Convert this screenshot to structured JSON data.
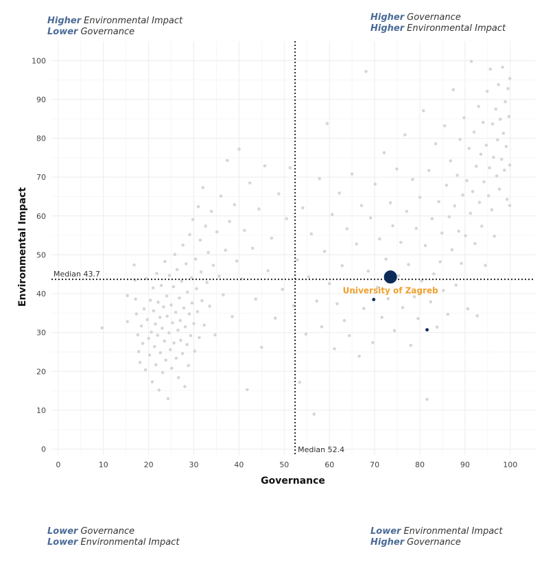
{
  "quadrants": {
    "top_left": [
      {
        "strong": "Higher",
        "text": "Environmental Impact"
      },
      {
        "strong": "Lower",
        "text": "Governance"
      }
    ],
    "top_right": [
      {
        "strong": "Higher",
        "text": "Governance"
      },
      {
        "strong": "Higher",
        "text": "Environmental Impact"
      }
    ],
    "bottom_left": [
      {
        "strong": "Lower",
        "text": "Governance"
      },
      {
        "strong": "Lower",
        "text": "Environmental Impact"
      }
    ],
    "bottom_right": [
      {
        "strong": "Lower",
        "text": "Environmental Impact"
      },
      {
        "strong": "Higher",
        "text": "Governance"
      }
    ]
  },
  "chart_data": {
    "type": "scatter",
    "xlabel": "Governance",
    "ylabel": "Environmental Impact",
    "xlim": [
      -1.5,
      105.5
    ],
    "ylim": [
      -1.5,
      105
    ],
    "xticks": [
      0,
      10,
      20,
      30,
      40,
      50,
      60,
      70,
      80,
      90,
      100
    ],
    "yticks": [
      0,
      10,
      20,
      30,
      40,
      50,
      60,
      70,
      80,
      90,
      100
    ],
    "grid": true,
    "medians": {
      "x": 52.4,
      "y": 43.7,
      "x_label": "Median 52.4",
      "y_label": "Median 43.7"
    },
    "highlight": {
      "name": "University of Zagreb",
      "x": 73.5,
      "y": 44.3
    },
    "secondary_points": [
      {
        "x": 69.8,
        "y": 38.5
      },
      {
        "x": 81.6,
        "y": 30.7
      }
    ],
    "background_points": [
      [
        9.7,
        31.2
      ],
      [
        15.3,
        39.5
      ],
      [
        15.3,
        32.8
      ],
      [
        16.8,
        47.4
      ],
      [
        17,
        43.5
      ],
      [
        17.1,
        38.6
      ],
      [
        17.3,
        34.8
      ],
      [
        17.6,
        29.4
      ],
      [
        17.8,
        25.1
      ],
      [
        18.1,
        22.3
      ],
      [
        18.4,
        31.7
      ],
      [
        18.7,
        27.2
      ],
      [
        19,
        36.1
      ],
      [
        19.3,
        20.4
      ],
      [
        19.5,
        43.9
      ],
      [
        19.7,
        33.3
      ],
      [
        20,
        28.5
      ],
      [
        20.2,
        24.2
      ],
      [
        20.4,
        38.3
      ],
      [
        20.6,
        30.1
      ],
      [
        20.8,
        17.3
      ],
      [
        21,
        41.5
      ],
      [
        21.1,
        35.6
      ],
      [
        21.3,
        26.4
      ],
      [
        21.5,
        32.2
      ],
      [
        21.6,
        21.7
      ],
      [
        21.8,
        45.2
      ],
      [
        22,
        29.3
      ],
      [
        22.1,
        37.8
      ],
      [
        22.3,
        15.2
      ],
      [
        22.5,
        33.9
      ],
      [
        22.6,
        24.8
      ],
      [
        22.8,
        42.1
      ],
      [
        23,
        31.1
      ],
      [
        23.1,
        19.7
      ],
      [
        23.3,
        36.6
      ],
      [
        23.5,
        27.8
      ],
      [
        23.6,
        48.3
      ],
      [
        23.8,
        22.9
      ],
      [
        24,
        39.4
      ],
      [
        24.1,
        34.2
      ],
      [
        24.3,
        13
      ],
      [
        24.5,
        29.9
      ],
      [
        24.6,
        44.7
      ],
      [
        24.8,
        25.6
      ],
      [
        25,
        37.1
      ],
      [
        25.1,
        20.8
      ],
      [
        25.3,
        32.5
      ],
      [
        25.5,
        41.8
      ],
      [
        25.6,
        27.3
      ],
      [
        25.8,
        50.1
      ],
      [
        26,
        35.2
      ],
      [
        26.1,
        23.4
      ],
      [
        26.3,
        46.2
      ],
      [
        26.5,
        30.6
      ],
      [
        26.6,
        18.4
      ],
      [
        26.8,
        38.9
      ],
      [
        27,
        33.1
      ],
      [
        27.1,
        28
      ],
      [
        27.3,
        43.2
      ],
      [
        27.5,
        24.6
      ],
      [
        27.6,
        52.5
      ],
      [
        27.8,
        36.3
      ],
      [
        28,
        16.1
      ],
      [
        28.1,
        31.5
      ],
      [
        28.3,
        47.7
      ],
      [
        28.5,
        26.9
      ],
      [
        28.6,
        40.4
      ],
      [
        28.8,
        21.5
      ],
      [
        29,
        34.8
      ],
      [
        29.1,
        55.2
      ],
      [
        29.3,
        29.2
      ],
      [
        29.5,
        44.1
      ],
      [
        29.6,
        37.6
      ],
      [
        29.8,
        59.1
      ],
      [
        30,
        32.3
      ],
      [
        30.2,
        25.2
      ],
      [
        30.4,
        48.9
      ],
      [
        30.6,
        41.3
      ],
      [
        30.8,
        35.4
      ],
      [
        31,
        62.4
      ],
      [
        31.2,
        28.7
      ],
      [
        31.4,
        53.8
      ],
      [
        31.6,
        45.6
      ],
      [
        31.8,
        38.2
      ],
      [
        32,
        67.3
      ],
      [
        32.3,
        31.9
      ],
      [
        32.6,
        57.4
      ],
      [
        32.9,
        42.9
      ],
      [
        33.2,
        50.6
      ],
      [
        33.5,
        36.8
      ],
      [
        33.9,
        61.2
      ],
      [
        34.3,
        47.3
      ],
      [
        34.7,
        29.4
      ],
      [
        35.1,
        55.9
      ],
      [
        35.6,
        44.5
      ],
      [
        36,
        65.1
      ],
      [
        36.5,
        39.7
      ],
      [
        37,
        51.2
      ],
      [
        37.4,
        74.3
      ],
      [
        37.9,
        58.6
      ],
      [
        38.5,
        34.1
      ],
      [
        39,
        62.9
      ],
      [
        39.5,
        48.4
      ],
      [
        40,
        77.2
      ],
      [
        40.6,
        43.8
      ],
      [
        41.2,
        56.3
      ],
      [
        41.8,
        15.3
      ],
      [
        42.4,
        68.5
      ],
      [
        43,
        51.7
      ],
      [
        43.7,
        38.6
      ],
      [
        44.4,
        61.8
      ],
      [
        45,
        26.2
      ],
      [
        45.7,
        72.9
      ],
      [
        46.4,
        45.9
      ],
      [
        47.2,
        54.3
      ],
      [
        48,
        33.7
      ],
      [
        48.8,
        65.7
      ],
      [
        49.6,
        41.1
      ],
      [
        50.5,
        59.3
      ],
      [
        51.3,
        72.4
      ],
      [
        52.1,
        36.9
      ],
      [
        52.9,
        48.7
      ],
      [
        53.4,
        17.2
      ],
      [
        54.1,
        62.1
      ],
      [
        54.8,
        29.6
      ],
      [
        55.4,
        44.3
      ],
      [
        56,
        55.4
      ],
      [
        56.6,
        9
      ],
      [
        57.2,
        38.1
      ],
      [
        57.8,
        69.6
      ],
      [
        58.3,
        31.5
      ],
      [
        58.9,
        50.9
      ],
      [
        59.5,
        83.8
      ],
      [
        60,
        42.6
      ],
      [
        60.6,
        60.4
      ],
      [
        61.1,
        25.8
      ],
      [
        61.7,
        37.4
      ],
      [
        62.2,
        65.9
      ],
      [
        62.8,
        47.2
      ],
      [
        63.3,
        33.1
      ],
      [
        63.9,
        56.7
      ],
      [
        64.4,
        29.2
      ],
      [
        65,
        70.8
      ],
      [
        65.5,
        40.3
      ],
      [
        66,
        52.8
      ],
      [
        66.6,
        23.9
      ],
      [
        67.1,
        62.7
      ],
      [
        67.6,
        36.2
      ],
      [
        68.1,
        97.2
      ],
      [
        68.6,
        45.8
      ],
      [
        69.1,
        59.5
      ],
      [
        69.6,
        27.4
      ],
      [
        70.1,
        68.2
      ],
      [
        70.6,
        41.6
      ],
      [
        71.1,
        54.1
      ],
      [
        71.6,
        33.9
      ],
      [
        72.1,
        76.3
      ],
      [
        72.5,
        48.9
      ],
      [
        73,
        38.7
      ],
      [
        73.5,
        63.4
      ],
      [
        74,
        57.5
      ],
      [
        74.4,
        30.5
      ],
      [
        74.9,
        72.1
      ],
      [
        75.3,
        44.6
      ],
      [
        75.8,
        53.2
      ],
      [
        76.2,
        36.4
      ],
      [
        76.7,
        80.9
      ],
      [
        77.1,
        61.2
      ],
      [
        77.5,
        47.5
      ],
      [
        78,
        26.7
      ],
      [
        78.4,
        69.4
      ],
      [
        78.8,
        39.2
      ],
      [
        79.2,
        56.8
      ],
      [
        79.6,
        33.6
      ],
      [
        80,
        64.8
      ],
      [
        80.4,
        43.3
      ],
      [
        80.8,
        87.1
      ],
      [
        81.2,
        52.4
      ],
      [
        81.6,
        12.8
      ],
      [
        82,
        71.7
      ],
      [
        82.4,
        37.9
      ],
      [
        82.7,
        59.3
      ],
      [
        83.1,
        45.1
      ],
      [
        83.5,
        78.6
      ],
      [
        83.8,
        31.4
      ],
      [
        84.2,
        63.7
      ],
      [
        84.5,
        48.2
      ],
      [
        84.9,
        55.6
      ],
      [
        85.2,
        40.8
      ],
      [
        85.5,
        83.2
      ],
      [
        85.9,
        67.9
      ],
      [
        86.2,
        34.7
      ],
      [
        86.5,
        59.8
      ],
      [
        86.8,
        74.2
      ],
      [
        87.1,
        51.3
      ],
      [
        87.4,
        92.5
      ],
      [
        87.7,
        62.6
      ],
      [
        88,
        42.2
      ],
      [
        88.3,
        70.5
      ],
      [
        88.6,
        56.1
      ],
      [
        88.9,
        79.7
      ],
      [
        89.2,
        47.8
      ],
      [
        89.5,
        65.4
      ],
      [
        89.8,
        85.3
      ],
      [
        90.1,
        54.9
      ],
      [
        90.4,
        69.1
      ],
      [
        90.6,
        36.1
      ],
      [
        90.9,
        77.4
      ],
      [
        91.2,
        60.7
      ],
      [
        91.4,
        99.8
      ],
      [
        91.7,
        66.3
      ],
      [
        92,
        81.6
      ],
      [
        92.2,
        52.9
      ],
      [
        92.5,
        72.8
      ],
      [
        92.7,
        34.3
      ],
      [
        93,
        88.2
      ],
      [
        93.2,
        63.5
      ],
      [
        93.5,
        75.9
      ],
      [
        93.7,
        57.4
      ],
      [
        94,
        84.1
      ],
      [
        94.2,
        68.8
      ],
      [
        94.5,
        47.3
      ],
      [
        94.7,
        78.2
      ],
      [
        94.9,
        92.1
      ],
      [
        95.2,
        65.2
      ],
      [
        95.4,
        72.4
      ],
      [
        95.6,
        97.8
      ],
      [
        95.9,
        61.6
      ],
      [
        96.1,
        83.7
      ],
      [
        96.3,
        75.1
      ],
      [
        96.5,
        54.8
      ],
      [
        96.8,
        87.5
      ],
      [
        97,
        70.3
      ],
      [
        97.2,
        79.6
      ],
      [
        97.4,
        93.8
      ],
      [
        97.6,
        66.9
      ],
      [
        97.8,
        84.9
      ],
      [
        98.1,
        74.6
      ],
      [
        98.3,
        98.3
      ],
      [
        98.5,
        81.3
      ],
      [
        98.7,
        71.8
      ],
      [
        98.9,
        89.4
      ],
      [
        99.1,
        77.9
      ],
      [
        99.3,
        64.3
      ],
      [
        99.5,
        92.8
      ],
      [
        99.7,
        85.6
      ],
      [
        99.9,
        62.7
      ],
      [
        99.9,
        73.1
      ],
      [
        99.9,
        95.4
      ]
    ]
  }
}
